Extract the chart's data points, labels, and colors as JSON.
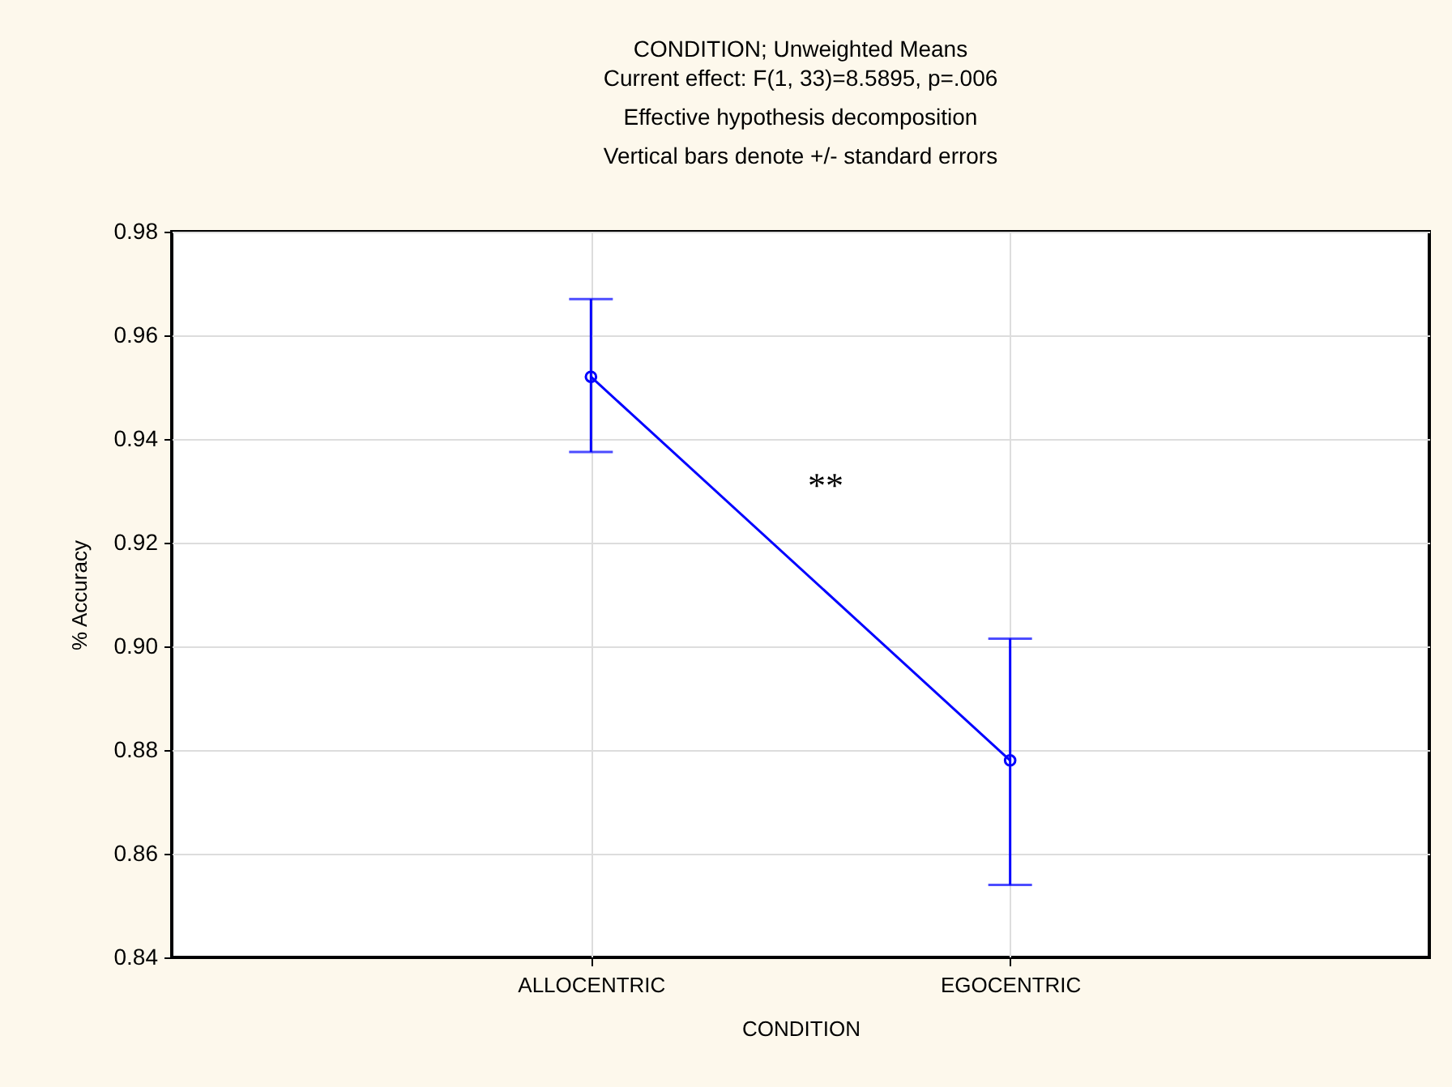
{
  "chart_data": {
    "type": "line",
    "title": "CONDITION; Unweighted Means",
    "subtitle": "Current effect: F(1, 33)=8.5895, p=.006",
    "annotations": [
      "Effective hypothesis decomposition",
      "Vertical bars denote +/- standard errors",
      "**"
    ],
    "xlabel": "CONDITION",
    "ylabel": "% Accuracy",
    "categories": [
      "ALLOCENTRIC",
      "EGOCENTRIC"
    ],
    "series": [
      {
        "color": "#0000ff",
        "values": [
          0.952,
          0.878
        ],
        "errors": [
          [
            0.9375,
            0.967
          ],
          [
            0.854,
            0.9015
          ]
        ]
      }
    ],
    "ylim": [
      0.84,
      0.98
    ],
    "yticks": [
      0.84,
      0.86,
      0.88,
      {
        "value": 0.9,
        "label": "0.90"
      },
      0.92,
      0.94,
      0.96,
      0.98
    ],
    "grid": true,
    "marker": "circle",
    "line_style": "solid"
  }
}
